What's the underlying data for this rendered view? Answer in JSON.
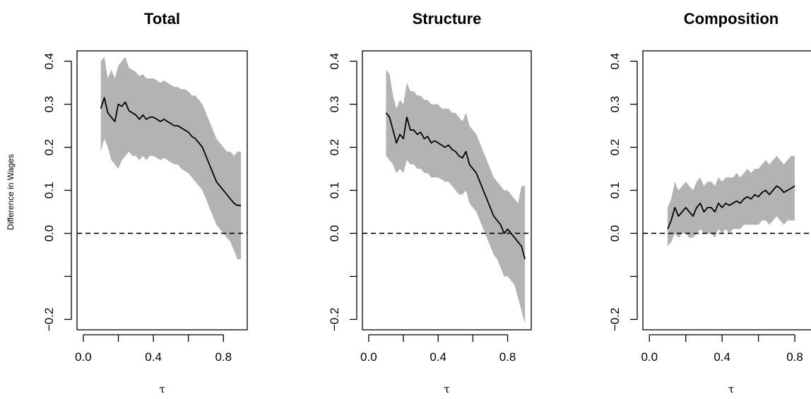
{
  "figure": {
    "ylabel": "Difference in Wages",
    "band_color": "#b3b3b3",
    "line_color": "#000000",
    "zero_line_color": "#000000"
  },
  "chart_data": [
    {
      "type": "line",
      "title": "Total",
      "xlabel": "τ",
      "ylabel": "Difference in Wages",
      "xlim": [
        0.0,
        0.9
      ],
      "ylim": [
        -0.2,
        0.4
      ],
      "x_ticks": [
        0.0,
        0.2,
        0.4,
        0.6,
        0.8
      ],
      "x_tick_labels": [
        "0.0",
        "",
        "0.4",
        "",
        "0.8"
      ],
      "y_ticks": [
        -0.2,
        -0.1,
        0.0,
        0.1,
        0.2,
        0.3,
        0.4
      ],
      "y_tick_labels": [
        "−0.2",
        "",
        "0.0",
        "0.1",
        "0.2",
        "0.3",
        "0.4"
      ],
      "reference_line": {
        "y": 0.0,
        "style": "dashed"
      },
      "series": [
        {
          "estimate": {
            "x": [
              0.1,
              0.12,
              0.14,
              0.16,
              0.18,
              0.2,
              0.22,
              0.24,
              0.26,
              0.28,
              0.3,
              0.32,
              0.34,
              0.36,
              0.38,
              0.4,
              0.42,
              0.44,
              0.46,
              0.48,
              0.5,
              0.52,
              0.54,
              0.56,
              0.58,
              0.6,
              0.62,
              0.64,
              0.66,
              0.68,
              0.7,
              0.72,
              0.74,
              0.76,
              0.78,
              0.8,
              0.82,
              0.84,
              0.86,
              0.88,
              0.9
            ],
            "y": [
              0.29,
              0.315,
              0.28,
              0.27,
              0.26,
              0.3,
              0.295,
              0.305,
              0.285,
              0.28,
              0.275,
              0.265,
              0.275,
              0.265,
              0.27,
              0.27,
              0.265,
              0.26,
              0.265,
              0.26,
              0.255,
              0.25,
              0.25,
              0.245,
              0.24,
              0.235,
              0.225,
              0.22,
              0.21,
              0.2,
              0.18,
              0.16,
              0.14,
              0.12,
              0.11,
              0.1,
              0.09,
              0.08,
              0.07,
              0.065,
              0.065
            ]
          },
          "band_lower": [
            0.19,
            0.22,
            0.2,
            0.17,
            0.16,
            0.15,
            0.17,
            0.18,
            0.19,
            0.18,
            0.18,
            0.17,
            0.18,
            0.17,
            0.18,
            0.18,
            0.175,
            0.17,
            0.175,
            0.17,
            0.165,
            0.16,
            0.16,
            0.15,
            0.145,
            0.14,
            0.13,
            0.12,
            0.11,
            0.1,
            0.08,
            0.06,
            0.04,
            0.02,
            0.01,
            0.0,
            -0.01,
            -0.02,
            -0.04,
            -0.06,
            -0.06
          ],
          "band_upper": [
            0.4,
            0.41,
            0.36,
            0.38,
            0.36,
            0.39,
            0.4,
            0.41,
            0.385,
            0.38,
            0.375,
            0.365,
            0.37,
            0.36,
            0.36,
            0.36,
            0.355,
            0.35,
            0.355,
            0.35,
            0.345,
            0.34,
            0.34,
            0.335,
            0.335,
            0.33,
            0.32,
            0.32,
            0.31,
            0.3,
            0.28,
            0.26,
            0.24,
            0.22,
            0.21,
            0.2,
            0.19,
            0.19,
            0.18,
            0.19,
            0.19
          ]
        }
      ]
    },
    {
      "type": "line",
      "title": "Structure",
      "xlabel": "τ",
      "xlim": [
        0.0,
        0.9
      ],
      "ylim": [
        -0.2,
        0.4
      ],
      "x_ticks": [
        0.0,
        0.2,
        0.4,
        0.6,
        0.8
      ],
      "x_tick_labels": [
        "0.0",
        "",
        "0.4",
        "",
        "0.8"
      ],
      "y_ticks": [
        -0.2,
        -0.1,
        0.0,
        0.1,
        0.2,
        0.3,
        0.4
      ],
      "y_tick_labels": [
        "−0.2",
        "",
        "0.0",
        "0.1",
        "0.2",
        "0.3",
        "0.4"
      ],
      "reference_line": {
        "y": 0.0,
        "style": "dashed"
      },
      "series": [
        {
          "estimate": {
            "x": [
              0.1,
              0.12,
              0.14,
              0.16,
              0.18,
              0.2,
              0.22,
              0.24,
              0.26,
              0.28,
              0.3,
              0.32,
              0.34,
              0.36,
              0.38,
              0.4,
              0.42,
              0.44,
              0.46,
              0.48,
              0.5,
              0.52,
              0.54,
              0.56,
              0.58,
              0.6,
              0.62,
              0.64,
              0.66,
              0.68,
              0.7,
              0.72,
              0.74,
              0.76,
              0.78,
              0.8,
              0.82,
              0.84,
              0.86,
              0.88,
              0.9
            ],
            "y": [
              0.28,
              0.27,
              0.24,
              0.21,
              0.23,
              0.22,
              0.27,
              0.24,
              0.24,
              0.23,
              0.235,
              0.22,
              0.225,
              0.21,
              0.215,
              0.21,
              0.205,
              0.2,
              0.205,
              0.195,
              0.19,
              0.18,
              0.175,
              0.19,
              0.16,
              0.15,
              0.14,
              0.12,
              0.1,
              0.08,
              0.06,
              0.04,
              0.03,
              0.02,
              0.0,
              0.01,
              0.0,
              -0.01,
              -0.02,
              -0.03,
              -0.06
            ]
          },
          "band_lower": [
            0.18,
            0.17,
            0.16,
            0.14,
            0.15,
            0.14,
            0.17,
            0.16,
            0.16,
            0.15,
            0.15,
            0.14,
            0.14,
            0.13,
            0.13,
            0.13,
            0.125,
            0.12,
            0.12,
            0.11,
            0.1,
            0.09,
            0.09,
            0.1,
            0.07,
            0.06,
            0.05,
            0.03,
            0.01,
            -0.01,
            -0.03,
            -0.05,
            -0.06,
            -0.08,
            -0.1,
            -0.1,
            -0.11,
            -0.12,
            -0.15,
            -0.18,
            -0.21
          ],
          "band_upper": [
            0.38,
            0.37,
            0.32,
            0.29,
            0.31,
            0.3,
            0.35,
            0.33,
            0.33,
            0.32,
            0.32,
            0.31,
            0.31,
            0.3,
            0.3,
            0.3,
            0.29,
            0.29,
            0.29,
            0.28,
            0.28,
            0.27,
            0.26,
            0.28,
            0.25,
            0.24,
            0.23,
            0.21,
            0.19,
            0.17,
            0.15,
            0.13,
            0.12,
            0.11,
            0.1,
            0.1,
            0.09,
            0.08,
            0.07,
            0.11,
            0.11
          ]
        }
      ]
    },
    {
      "type": "line",
      "title": "Composition",
      "xlabel": "τ",
      "xlim": [
        0.0,
        0.9
      ],
      "ylim": [
        -0.2,
        0.4
      ],
      "x_ticks": [
        0.0,
        0.2,
        0.4,
        0.6,
        0.8
      ],
      "x_tick_labels": [
        "0.0",
        "",
        "0.4",
        "",
        "0.8"
      ],
      "y_ticks": [
        -0.2,
        -0.1,
        0.0,
        0.1,
        0.2,
        0.3,
        0.4
      ],
      "y_tick_labels": [
        "−0.2",
        "",
        "0.0",
        "0.1",
        "0.2",
        "0.3",
        "0.4"
      ],
      "reference_line": {
        "y": 0.0,
        "style": "dashed"
      },
      "series": [
        {
          "estimate": {
            "x": [
              0.1,
              0.12,
              0.14,
              0.16,
              0.18,
              0.2,
              0.22,
              0.24,
              0.26,
              0.28,
              0.3,
              0.32,
              0.34,
              0.36,
              0.38,
              0.4,
              0.42,
              0.44,
              0.46,
              0.48,
              0.5,
              0.52,
              0.54,
              0.56,
              0.58,
              0.6,
              0.62,
              0.64,
              0.66,
              0.68,
              0.7,
              0.72,
              0.74,
              0.76,
              0.78,
              0.8
            ],
            "y": [
              0.01,
              0.03,
              0.06,
              0.04,
              0.05,
              0.06,
              0.05,
              0.04,
              0.06,
              0.07,
              0.05,
              0.06,
              0.06,
              0.05,
              0.07,
              0.06,
              0.07,
              0.065,
              0.07,
              0.075,
              0.07,
              0.08,
              0.085,
              0.08,
              0.09,
              0.085,
              0.095,
              0.1,
              0.09,
              0.1,
              0.11,
              0.105,
              0.095,
              0.1,
              0.105,
              0.11
            ]
          },
          "band_lower": [
            -0.03,
            -0.02,
            0.0,
            -0.01,
            0.0,
            0.0,
            -0.01,
            -0.01,
            0.0,
            0.01,
            0.0,
            0.0,
            0.0,
            -0.01,
            0.01,
            0.0,
            0.01,
            0.0,
            0.01,
            0.01,
            0.01,
            0.02,
            0.02,
            0.02,
            0.02,
            0.02,
            0.03,
            0.03,
            0.02,
            0.03,
            0.04,
            0.03,
            0.02,
            0.03,
            0.03,
            0.03
          ],
          "band_upper": [
            0.06,
            0.08,
            0.12,
            0.1,
            0.11,
            0.12,
            0.11,
            0.1,
            0.12,
            0.13,
            0.11,
            0.12,
            0.12,
            0.11,
            0.13,
            0.12,
            0.13,
            0.13,
            0.13,
            0.14,
            0.13,
            0.14,
            0.15,
            0.14,
            0.15,
            0.15,
            0.16,
            0.17,
            0.16,
            0.17,
            0.18,
            0.17,
            0.16,
            0.17,
            0.18,
            0.18
          ]
        }
      ]
    }
  ]
}
